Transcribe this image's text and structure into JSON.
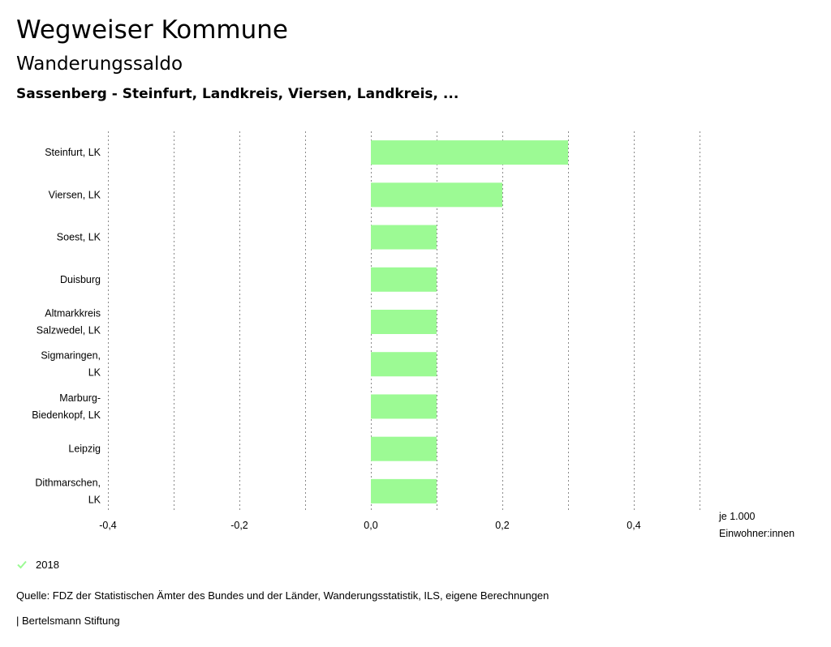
{
  "header": {
    "title": "Wegweiser Kommune",
    "subtitle": "Wanderungssaldo",
    "region": "Sassenberg - Steinfurt, Landkreis, Viersen, Landkreis, ..."
  },
  "chart_data": {
    "type": "bar",
    "orientation": "horizontal",
    "categories": [
      [
        "Steinfurt, LK"
      ],
      [
        "Viersen, LK"
      ],
      [
        "Soest, LK"
      ],
      [
        "Duisburg"
      ],
      [
        "Altmarkkreis",
        "Salzwedel, LK"
      ],
      [
        "Sigmaringen,",
        "LK"
      ],
      [
        "Marburg-",
        "Biedenkopf, LK"
      ],
      [
        "Leipzig"
      ],
      [
        "Dithmarschen,",
        "LK"
      ]
    ],
    "series": [
      {
        "name": "2018",
        "values": [
          0.3,
          0.2,
          0.1,
          0.1,
          0.1,
          0.1,
          0.1,
          0.1,
          0.1
        ]
      }
    ],
    "xlim": [
      -0.4,
      0.5
    ],
    "tick_values": [
      -0.4,
      -0.2,
      0.0,
      0.2,
      0.4
    ],
    "tick_labels": [
      "-0,4",
      "-0,2",
      "0,0",
      "0,2",
      "0,4"
    ],
    "unit": [
      "je 1.000",
      "Einwohner:innen"
    ],
    "grid": "vertical-dotted",
    "bar_color": "#9cfa94"
  },
  "legend": {
    "label": "2018",
    "color": "#9cfa94"
  },
  "footer": {
    "source": "Quelle: FDZ der Statistischen Ämter des Bundes und der Länder, Wanderungsstatistik, ILS, eigene Berechnungen",
    "credit": "| Bertelsmann Stiftung"
  }
}
